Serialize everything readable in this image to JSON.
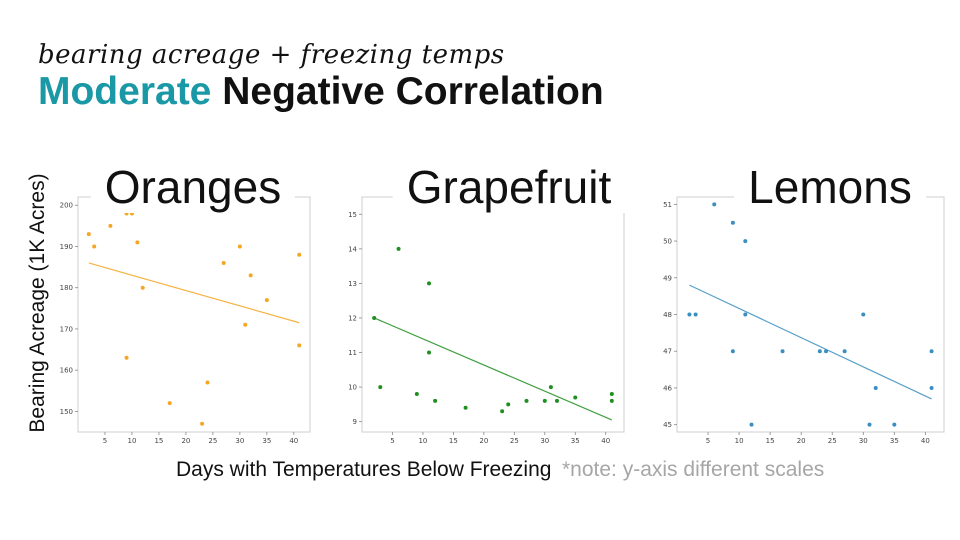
{
  "slide": {
    "subtitle": "bearing acreage + freezing temps",
    "title_accent": "Moderate",
    "title_rest": "Negative Correlation",
    "ylabel": "Bearing Acreage (1K Acres)",
    "xlabel": "Days with Temperatures Below Freezing",
    "note": "*note: y-axis different scales"
  },
  "chart_data": [
    {
      "type": "scatter",
      "title": "Oranges",
      "color": "#f5a623",
      "xlim": [
        0,
        43
      ],
      "ylim": [
        145,
        202
      ],
      "xticks": [
        5,
        10,
        15,
        20,
        25,
        30,
        35,
        40
      ],
      "yticks": [
        150,
        160,
        170,
        180,
        190,
        200
      ],
      "x": [
        2,
        3,
        6,
        9,
        10,
        11,
        12,
        9,
        17,
        23,
        24,
        27,
        30,
        31,
        32,
        35,
        41,
        41
      ],
      "y": [
        193,
        190,
        195,
        198,
        198,
        191,
        180,
        163,
        152,
        147,
        157,
        186,
        190,
        171,
        183,
        177,
        188,
        166
      ],
      "trend": [
        [
          2,
          186
        ],
        [
          41,
          171.5
        ]
      ]
    },
    {
      "type": "scatter",
      "title": "Grapefruit",
      "color": "#1f8f1f",
      "xlim": [
        0,
        43
      ],
      "ylim": [
        8.7,
        15.5
      ],
      "xticks": [
        5,
        10,
        15,
        20,
        25,
        30,
        35,
        40
      ],
      "yticks": [
        9,
        10,
        11,
        12,
        13,
        14,
        15
      ],
      "x": [
        2,
        3,
        6,
        9,
        9,
        11,
        11,
        12,
        17,
        23,
        24,
        27,
        30,
        31,
        32,
        35,
        41,
        41
      ],
      "y": [
        12,
        10,
        14,
        15.4,
        9.8,
        13,
        11,
        9.6,
        9.4,
        9.3,
        9.5,
        9.6,
        9.6,
        10,
        9.6,
        9.7,
        9.8,
        9.6
      ],
      "trend": [
        [
          2,
          12
        ],
        [
          41,
          9.05
        ]
      ]
    },
    {
      "type": "scatter",
      "title": "Lemons",
      "color": "#3a8fc0",
      "xlim": [
        0,
        43
      ],
      "ylim": [
        44.8,
        51.2
      ],
      "xticks": [
        5,
        10,
        15,
        20,
        25,
        30,
        35,
        40
      ],
      "yticks": [
        45,
        46,
        47,
        48,
        49,
        50,
        51
      ],
      "x": [
        2,
        3,
        6,
        9,
        9,
        11,
        11,
        12,
        17,
        23,
        24,
        27,
        30,
        31,
        32,
        35,
        41,
        41
      ],
      "y": [
        48,
        48,
        51,
        50.5,
        47,
        50,
        48,
        45,
        47,
        47,
        47,
        47,
        48,
        45,
        46,
        45,
        47,
        46
      ],
      "trend": [
        [
          2,
          48.8
        ],
        [
          41,
          45.7
        ]
      ]
    }
  ]
}
